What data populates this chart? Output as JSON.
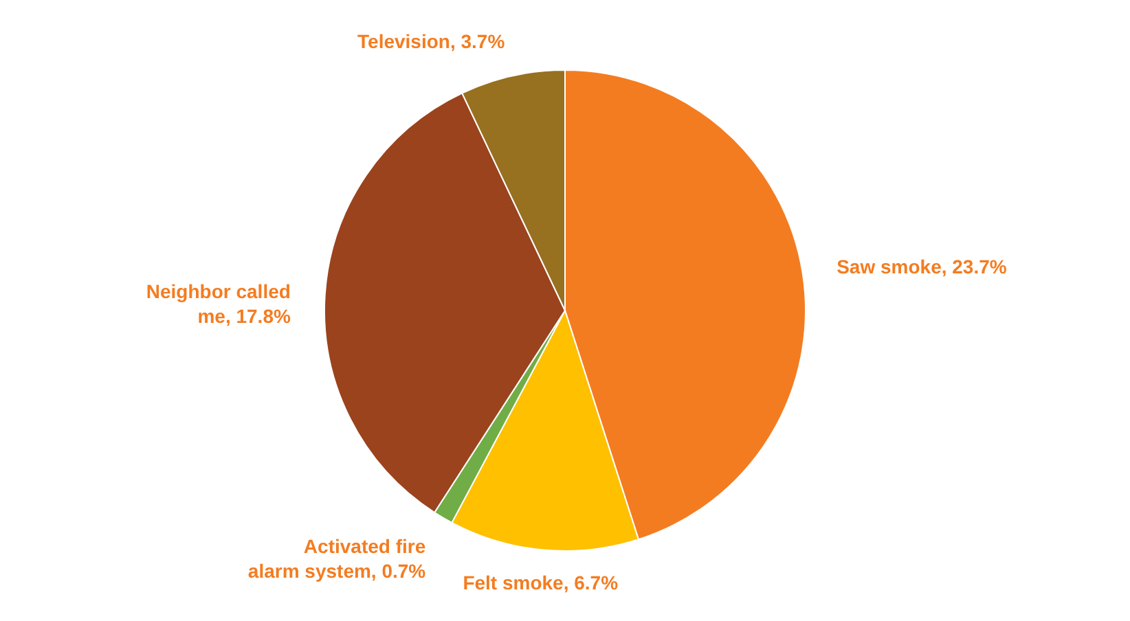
{
  "chart_data": {
    "type": "pie",
    "categories": [
      "Saw smoke",
      "Felt smoke",
      "Activated fire alarm system",
      "Neighbor called me",
      "Television"
    ],
    "values": [
      23.7,
      6.7,
      0.7,
      17.8,
      3.7
    ],
    "value_labels": [
      "23.7%",
      "6.7%",
      "0.7%",
      "17.8%",
      "3.7%"
    ],
    "colors": [
      "#f47c20",
      "#ffc000",
      "#70ad47",
      "#9b431d",
      "#977020"
    ],
    "legend": false
  }
}
